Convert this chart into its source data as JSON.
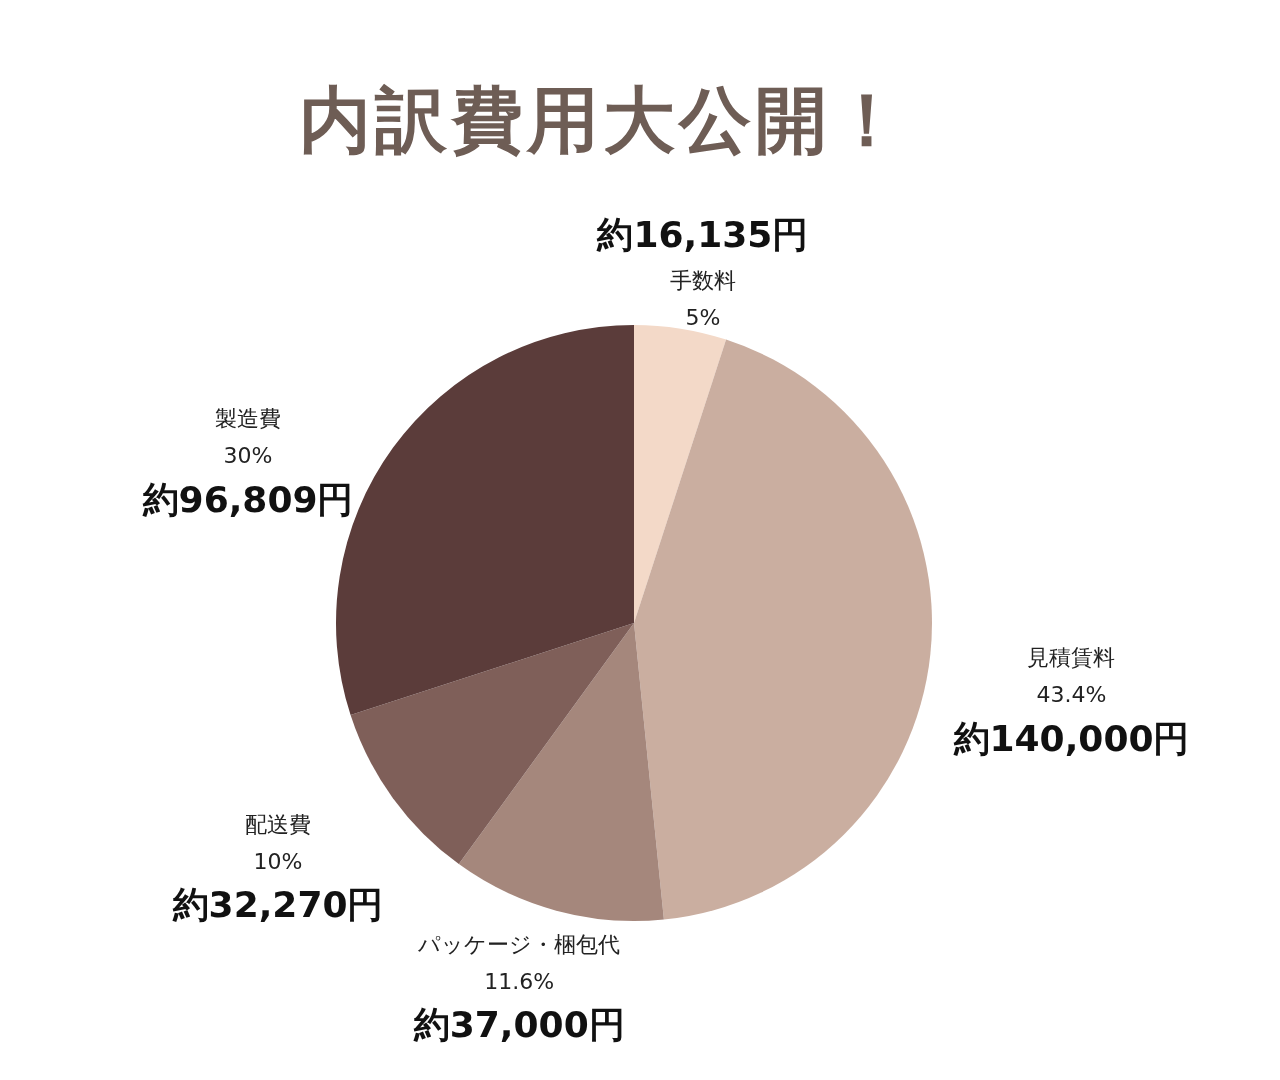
{
  "chart_data": {
    "type": "pie",
    "title": "内訳費用大公開！",
    "categories": [
      "手数料",
      "見積賃料",
      "パッケージ・梱包代",
      "配送費",
      "製造費"
    ],
    "values": [
      5,
      43.4,
      11.6,
      10,
      30
    ],
    "value_labels": [
      "5%",
      "43.4%",
      "11.6%",
      "10%",
      "30%"
    ],
    "colors": [
      "#f3d9c8",
      "#caaea0",
      "#a5877c",
      "#7f5f59",
      "#5b3c3a"
    ],
    "annotations": [
      "約16,135円",
      "約140,000円",
      "約37,000円",
      "約32,270円",
      "約96,809円"
    ],
    "legend": false
  }
}
